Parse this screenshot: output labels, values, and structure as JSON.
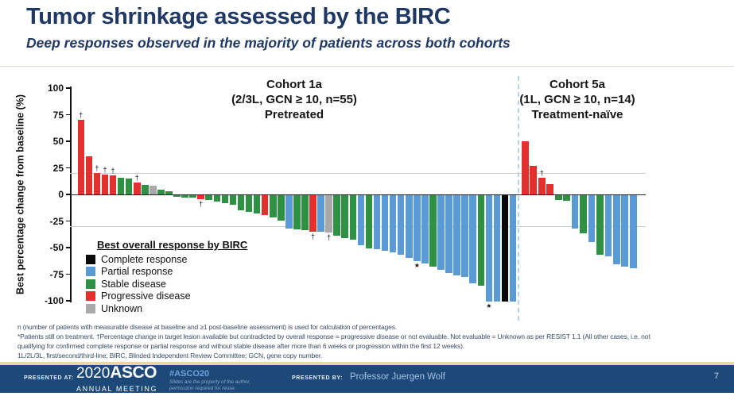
{
  "slide": {
    "title": "Tumor shrinkage assessed by the BIRC",
    "subtitle": "Deep responses observed in the majority of patients across both cohorts"
  },
  "footnotes": {
    "line1": "n (number of patients with measurable disease at baseline and ≥1 post-baseline assessment) is used for calculation of percentages.",
    "line2": "*Patients still on treatment. †Percentage change in target lesion available but contradicted by overall response = progressive disease or not evaluable. Not evaluable = Unknown as per RESIST 1.1 (All other cases, i.e. not",
    "line3": "qualifying for confirmed complete response or partial response and without stable disease after more than 6 weeks or progression within the first 12 weeks).",
    "line4": "1L/2L/3L, first/second/third-line;  BIRC, Blinded Independent Review Committee; GCN, gene copy number."
  },
  "footer": {
    "presented_at_label": "PRESENTED AT:",
    "logo_year": "2020",
    "logo_name": "ASCO",
    "logo_sub": "ANNUAL MEETING",
    "hashtag": "#ASCO20",
    "notice_line1": "Slides are the property of the author,",
    "notice_line2": "permission required for reuse.",
    "presented_by_label": "PRESENTED BY:",
    "presenter": "Professor Juergen Wolf",
    "page": "7"
  },
  "chart_data": {
    "type": "bar",
    "title": "",
    "xlabel": "",
    "ylabel": "Best percentage change from baseline (%)",
    "ylim": [
      -100,
      100
    ],
    "yticks": [
      100,
      75,
      50,
      25,
      0,
      -25,
      -50,
      -75,
      -100
    ],
    "reference_lines": [
      20,
      -30
    ],
    "grid": "horizontal reference lines at +20% and -30% only",
    "legend": {
      "title": "Best overall response by BIRC",
      "position": "lower-left",
      "entries": [
        {
          "key": "CR",
          "label": "Complete response",
          "color": "#0a0a0a"
        },
        {
          "key": "PR",
          "label": "Partial response",
          "color": "#5b9bd5"
        },
        {
          "key": "SD",
          "label": "Stable disease",
          "color": "#2f9144"
        },
        {
          "key": "PD",
          "label": "Progressive disease",
          "color": "#e2312d"
        },
        {
          "key": "UNK",
          "label": "Unknown",
          "color": "#a9a9a9"
        }
      ]
    },
    "annotations": {
      "star": "★ = patient still on treatment",
      "dagger": "† = % change contradicted by overall response"
    },
    "groups": [
      {
        "title": "Cohort 1a",
        "subtitle": "(2/3L, GCN ≥ 10, n=55)",
        "note": "Pretreated",
        "bars": [
          {
            "value": 70,
            "response": "PD",
            "mark": "†"
          },
          {
            "value": 36,
            "response": "PD"
          },
          {
            "value": 20,
            "response": "PD",
            "mark": "†"
          },
          {
            "value": 19,
            "response": "PD",
            "mark": "†"
          },
          {
            "value": 18,
            "response": "PD",
            "mark": "†"
          },
          {
            "value": 16,
            "response": "SD"
          },
          {
            "value": 15,
            "response": "SD"
          },
          {
            "value": 11,
            "response": "PD",
            "mark": "†"
          },
          {
            "value": 9,
            "response": "SD"
          },
          {
            "value": 8,
            "response": "UNK"
          },
          {
            "value": 4.5,
            "response": "SD"
          },
          {
            "value": 3,
            "response": "SD"
          },
          {
            "value": -1.5,
            "response": "SD"
          },
          {
            "value": -2,
            "response": "SD"
          },
          {
            "value": -2.5,
            "response": "SD"
          },
          {
            "value": -3.5,
            "response": "PD",
            "mark": "†"
          },
          {
            "value": -4.5,
            "response": "SD"
          },
          {
            "value": -6,
            "response": "SD"
          },
          {
            "value": -7.5,
            "response": "SD"
          },
          {
            "value": -9,
            "response": "SD"
          },
          {
            "value": -14,
            "response": "SD"
          },
          {
            "value": -16,
            "response": "SD"
          },
          {
            "value": -17,
            "response": "SD"
          },
          {
            "value": -19,
            "response": "PD"
          },
          {
            "value": -21,
            "response": "SD"
          },
          {
            "value": -24,
            "response": "SD"
          },
          {
            "value": -31,
            "response": "PR"
          },
          {
            "value": -32,
            "response": "SD"
          },
          {
            "value": -33,
            "response": "SD"
          },
          {
            "value": -34,
            "response": "PD",
            "mark": "†"
          },
          {
            "value": -34.5,
            "response": "PR"
          },
          {
            "value": -35,
            "response": "UNK",
            "mark": "†"
          },
          {
            "value": -38,
            "response": "SD"
          },
          {
            "value": -40,
            "response": "SD"
          },
          {
            "value": -42,
            "response": "SD"
          },
          {
            "value": -47,
            "response": "PR"
          },
          {
            "value": -50,
            "response": "SD"
          },
          {
            "value": -51,
            "response": "PR"
          },
          {
            "value": -52,
            "response": "PR"
          },
          {
            "value": -54,
            "response": "PR"
          },
          {
            "value": -56,
            "response": "PR"
          },
          {
            "value": -59,
            "response": "PR"
          },
          {
            "value": -62,
            "response": "PR",
            "mark": "★"
          },
          {
            "value": -64,
            "response": "PR"
          },
          {
            "value": -67,
            "response": "SD"
          },
          {
            "value": -70,
            "response": "PR"
          },
          {
            "value": -73,
            "response": "PR"
          },
          {
            "value": -75,
            "response": "PR"
          },
          {
            "value": -77,
            "response": "PR"
          },
          {
            "value": -83,
            "response": "PR"
          },
          {
            "value": -85,
            "response": "SD"
          },
          {
            "value": -100,
            "response": "PR",
            "mark": "★"
          },
          {
            "value": -100,
            "response": "PR"
          },
          {
            "value": -100,
            "response": "CR"
          },
          {
            "value": -100,
            "response": "PR"
          }
        ]
      },
      {
        "title": "Cohort 5a",
        "subtitle": "(1L, GCN ≥ 10, n=14)",
        "note": "Treatment-naïve",
        "bars": [
          {
            "value": 50,
            "response": "PD"
          },
          {
            "value": 27,
            "response": "PD"
          },
          {
            "value": 16,
            "response": "PD",
            "mark": "†"
          },
          {
            "value": 10,
            "response": "PD"
          },
          {
            "value": -4.5,
            "response": "SD"
          },
          {
            "value": -5,
            "response": "SD"
          },
          {
            "value": -31,
            "response": "PR"
          },
          {
            "value": -36,
            "response": "SD"
          },
          {
            "value": -44,
            "response": "PR"
          },
          {
            "value": -56,
            "response": "SD"
          },
          {
            "value": -57.5,
            "response": "PR"
          },
          {
            "value": -65,
            "response": "PR"
          },
          {
            "value": -67,
            "response": "PR"
          },
          {
            "value": -69,
            "response": "PR"
          }
        ]
      }
    ]
  }
}
